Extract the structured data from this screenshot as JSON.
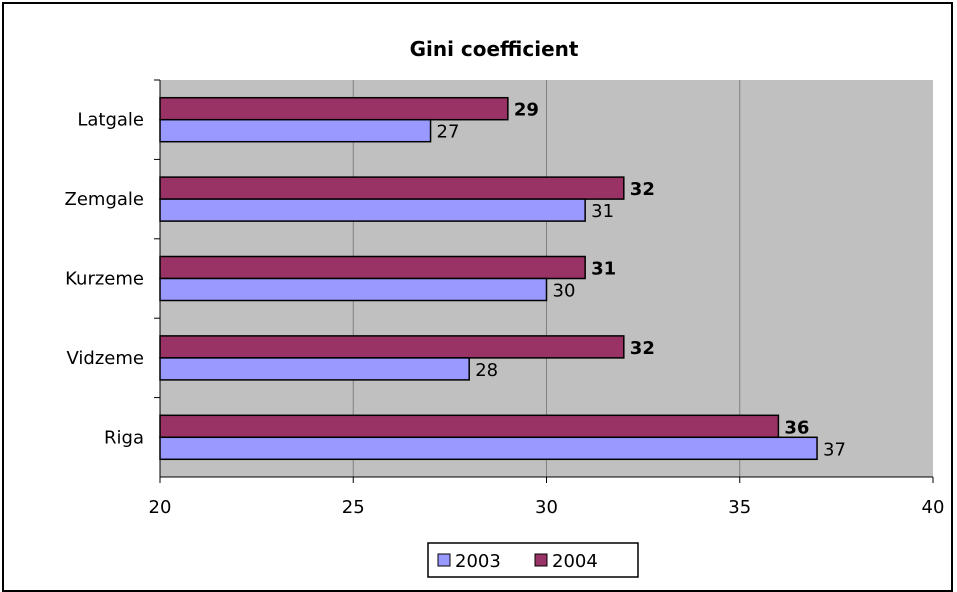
{
  "chart_data": {
    "type": "bar",
    "orientation": "horizontal",
    "title": "Gini coefficient",
    "categories": [
      "Riga",
      "Vidzeme",
      "Kurzeme",
      "Zemgale",
      "Latgale"
    ],
    "series": [
      {
        "name": "2003",
        "values": [
          37,
          28,
          30,
          31,
          27
        ],
        "color": "#9999ff"
      },
      {
        "name": "2004",
        "values": [
          36,
          32,
          31,
          32,
          29
        ],
        "color": "#993366"
      }
    ],
    "xlim": [
      20,
      40
    ],
    "xticks": [
      20,
      25,
      30,
      35,
      40
    ],
    "grid": true,
    "plot_background": "#c0c0c0",
    "legend_position": "bottom"
  }
}
